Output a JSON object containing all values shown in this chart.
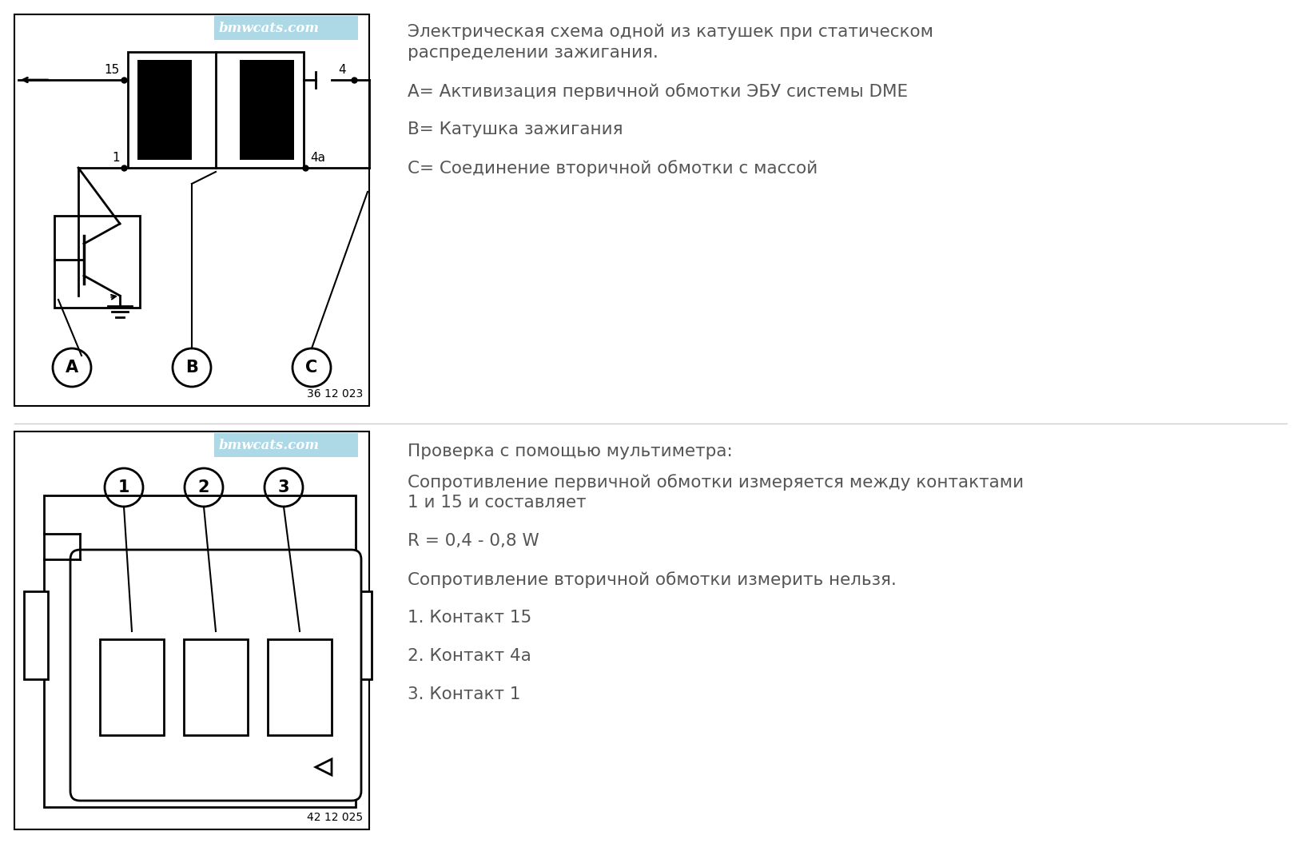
{
  "bg_color": "#ffffff",
  "black": "#000000",
  "gray_text": "#555555",
  "watermark_color": "#add8e6",
  "watermark_text": "bmwcats.com",
  "ref1": "36 12 023",
  "ref2": "42 12 025",
  "text_right_top": [
    "Электрическая схема одной из катушек при статическом",
    "распределении зажигания.",
    "А= Активизация первичной обмотки ЭБУ системы DME",
    "В= Катушка зажигания",
    "С= Соединение вторичной обмотки с массой"
  ],
  "text_right_bottom": [
    "Проверка с помощью мультиметра:",
    "Сопротивление первичной обмотки измеряется между контактами",
    "1 и 15 и составляет",
    "R = 0,4 - 0,8 W",
    "Сопротивление вторичной обмотки измерить нельзя.",
    "1. Контакт 15",
    "2. Контакт 4a",
    "3. Контакт 1"
  ]
}
